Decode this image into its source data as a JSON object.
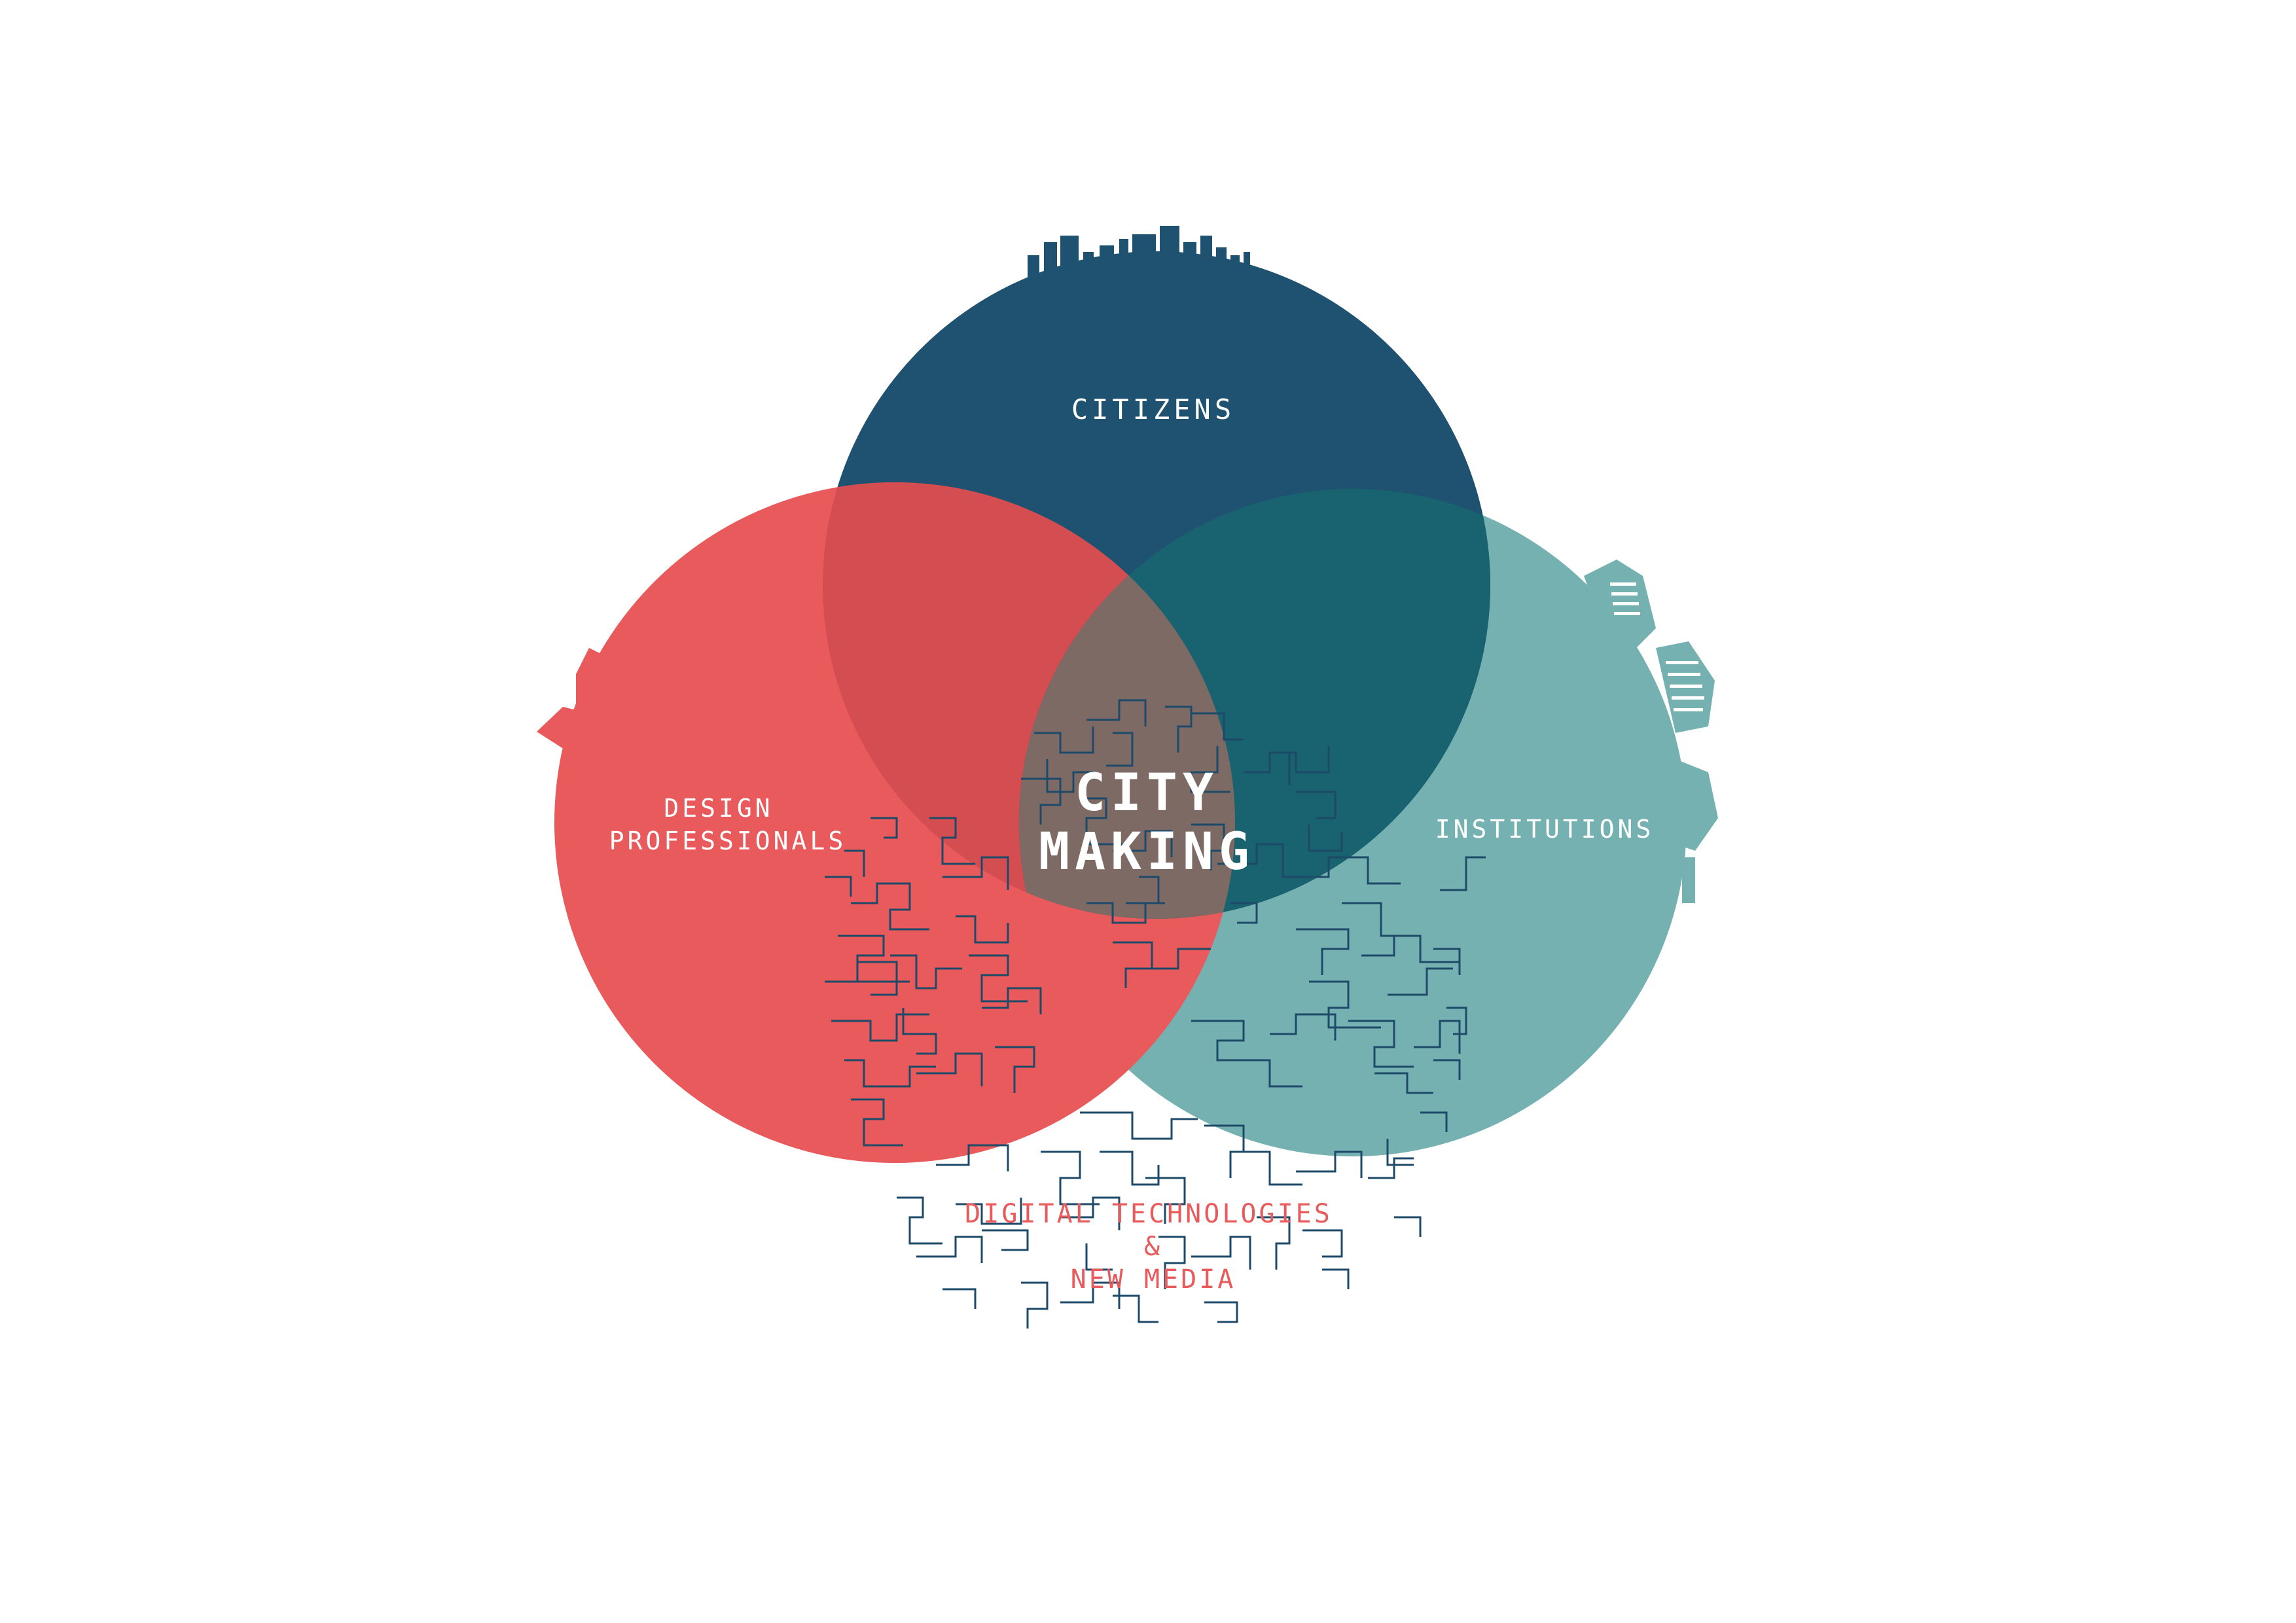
{
  "circles": {
    "citizens": {
      "label": "CITIZENS",
      "color": "#1e5270"
    },
    "design": {
      "label_line1": "DESIGN",
      "label_line2": "PROFESSIONALS",
      "color": "#e85a5b"
    },
    "institutions": {
      "label": "INSTITUTIONS",
      "color": "#76b1b1"
    }
  },
  "overlaps": {
    "design_citizens": "#d34d51",
    "citizens_institutions": "#196370",
    "center": "#7e6a64"
  },
  "center": {
    "line1": "CITY",
    "line2": "MAKING",
    "color": "#ffffff"
  },
  "bottom": {
    "line1": "DIGITAL TECHNOLOGIES",
    "line2": "&",
    "line3": "NEW MEDIA",
    "color": "#e85a5b"
  },
  "map_line_color": "#1e4a6a",
  "icons": [
    "skyline-silhouette",
    "port-crane-silhouette",
    "stadium-silhouette",
    "street-map-pattern"
  ]
}
